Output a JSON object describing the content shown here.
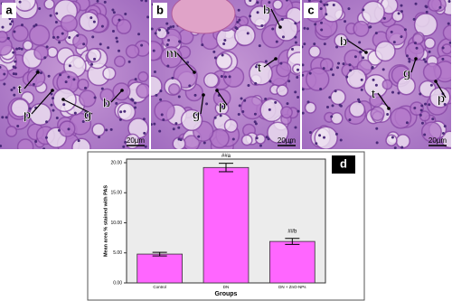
{
  "panels": [
    {
      "label": "a",
      "scale": "20µm",
      "annotations": [
        "t",
        "p",
        "g",
        "b"
      ]
    },
    {
      "label": "b",
      "scale": "20µm",
      "annotations": [
        "b",
        "m",
        "t",
        "g",
        "p"
      ]
    },
    {
      "label": "c",
      "scale": "20µm",
      "annotations": [
        "b",
        "t",
        "g",
        "p"
      ]
    }
  ],
  "chart_data": {
    "type": "bar",
    "label": "d",
    "y_label": "Mean area % stained with PAS",
    "x_label": "Groups",
    "categories": [
      "Control",
      "DN",
      "DN + ZnO-NPs"
    ],
    "values": [
      4.8,
      19.2,
      6.9
    ],
    "errors": [
      0.3,
      0.7,
      0.5
    ],
    "annotations": [
      {
        "category": "DN",
        "text": "##a"
      },
      {
        "category": "DN + ZnO-NPs",
        "text": "##b"
      }
    ],
    "color": "#ff66ff",
    "ylim": [
      0,
      20.6
    ],
    "yticks": [
      {
        "value": 0,
        "label": "0.00"
      },
      {
        "value": 5,
        "label": "5.00"
      },
      {
        "value": 10,
        "label": "10.00"
      },
      {
        "value": 15,
        "label": "15.00"
      },
      {
        "value": 20,
        "label": "20.00"
      }
    ]
  }
}
